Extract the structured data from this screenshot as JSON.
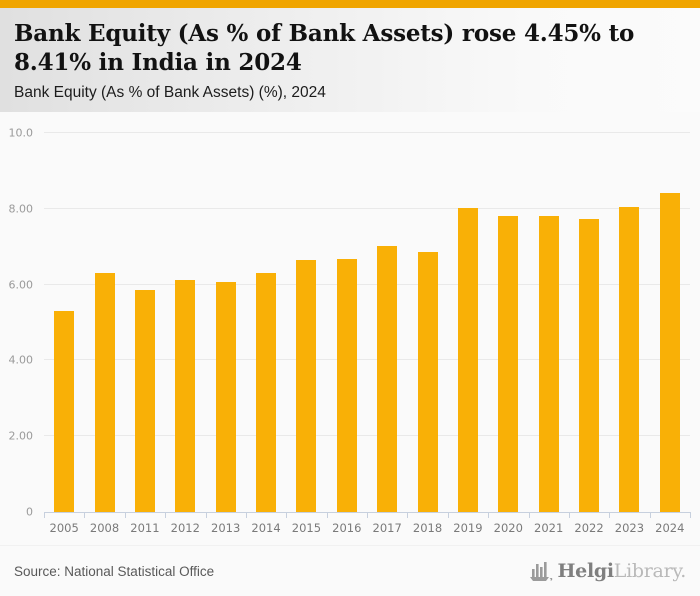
{
  "header": {
    "title": "Bank Equity (As % of Bank Assets) rose 4.45% to\n8.41% in India in 2024",
    "subtitle": "Bank Equity (As % of Bank Assets) (%), 2024"
  },
  "footer": {
    "source": "Source: National Statistical Office",
    "logo_icon": "bar-chart-ship-icon",
    "logo_text_primary": "Helgi",
    "logo_text_secondary": "Library."
  },
  "colors": {
    "accent_topbar": "#f0a500",
    "bar": "#f9b006",
    "gridline": "#e9e9e9",
    "axis": "#c7d0de"
  },
  "chart_data": {
    "type": "bar",
    "title": "Bank Equity (As % of Bank Assets) rose 4.45% to 8.41% in India in 2024",
    "subtitle": "Bank Equity (As % of Bank Assets) (%), 2024",
    "categories": [
      "2005",
      "2008",
      "2011",
      "2012",
      "2013",
      "2014",
      "2015",
      "2016",
      "2017",
      "2018",
      "2019",
      "2020",
      "2021",
      "2022",
      "2023",
      "2024"
    ],
    "values": [
      5.3,
      6.3,
      5.86,
      6.11,
      6.07,
      6.3,
      6.64,
      6.67,
      7.01,
      6.87,
      8.02,
      7.81,
      7.81,
      7.72,
      8.05,
      8.41
    ],
    "xlabel": "",
    "ylabel": "",
    "ylim": [
      0,
      10
    ],
    "yticks": [
      {
        "value": 10,
        "label": "10.0"
      },
      {
        "value": 8,
        "label": "8.00"
      },
      {
        "value": 6,
        "label": "6.00"
      },
      {
        "value": 4,
        "label": "4.00"
      },
      {
        "value": 2,
        "label": "2.00"
      },
      {
        "value": 0,
        "label": "0"
      }
    ],
    "grid": true,
    "legend": false,
    "bar_color": "#f9b006"
  }
}
